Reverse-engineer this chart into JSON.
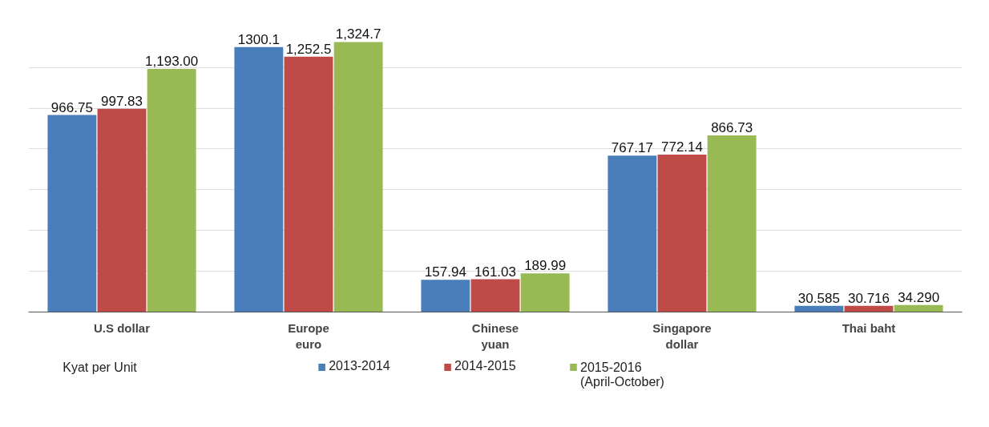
{
  "chart_data": {
    "type": "bar",
    "categories": [
      "U.S dollar",
      "Europe\neuro",
      "Chinese\nyuan",
      "Singapore\ndollar",
      "Thai baht"
    ],
    "series": [
      {
        "name": "2013-2014",
        "color": "#4a7ebb",
        "values": [
          966.75,
          1300.1,
          157.94,
          767.17,
          30.585
        ],
        "value_labels": [
          "966.75",
          "1300.1",
          "157.94",
          "767.17",
          "30.585"
        ]
      },
      {
        "name": "2014-2015",
        "color": "#be4b48",
        "values": [
          997.83,
          1252.5,
          161.03,
          772.14,
          30.716
        ],
        "value_labels": [
          "997.83",
          "1,252.5",
          "161.03",
          "772.14",
          "30.716"
        ]
      },
      {
        "name": "2015-2016\n(April-October)",
        "color": "#98b954",
        "values": [
          1193.0,
          1324.7,
          189.99,
          866.73,
          34.29
        ],
        "value_labels": [
          "1,193.00",
          "1,324.7",
          "189.99",
          "866.73",
          "34.290"
        ]
      }
    ],
    "yticks": [
      {
        "value": 200,
        "label": null
      },
      {
        "value": 400,
        "label": null
      },
      {
        "value": 600,
        "label": null
      },
      {
        "value": 800,
        "label": null
      },
      {
        "value": 1000,
        "label": null
      },
      {
        "value": 1200,
        "label": null
      }
    ],
    "grid": "y",
    "legend": "bottom",
    "tick_labels": "x",
    "annotations": [
      "Kyat per Unit"
    ]
  }
}
